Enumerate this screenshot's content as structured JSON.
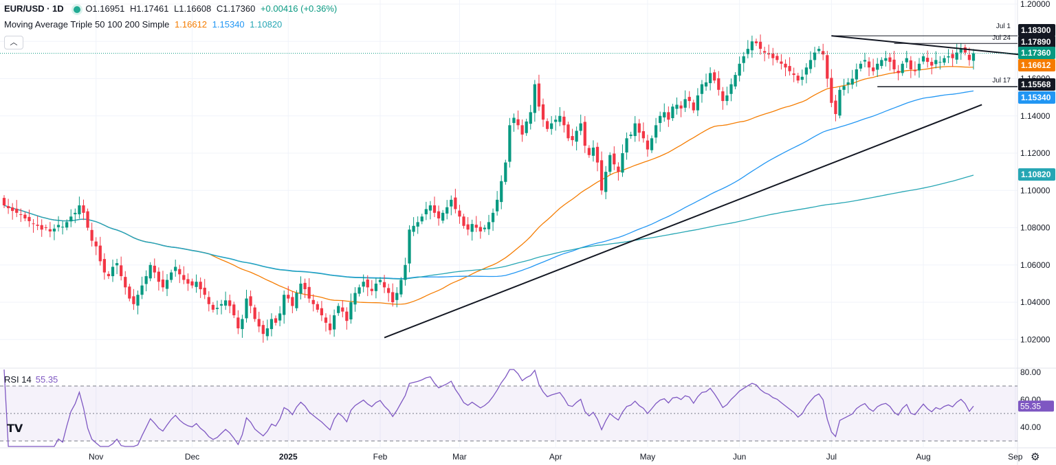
{
  "header": {
    "symbol": "EUR/USD · 1D",
    "open": "O1.16951",
    "high": "H1.17461",
    "low": "L1.16608",
    "close": "C1.17360",
    "change": "+0.00416 (+0.36%)",
    "ma_title": "Moving Average Triple 50 100 200 Simple",
    "ma50": "1.16612",
    "ma100": "1.15340",
    "ma200": "1.10820",
    "collapse_icon": "chevron-up-icon"
  },
  "rsi": {
    "title": "RSI 14",
    "value": "55.35",
    "color": "#7e57c2"
  },
  "colors": {
    "up": "#089981",
    "down": "#f23645",
    "ma50": "#f57c00",
    "ma100": "#2196f3",
    "ma200": "#26a6b4",
    "rsi": "#7e57c2"
  },
  "chart_data": {
    "type": "candlestick",
    "price_axis": {
      "ticks": [
        "1.20000",
        "1.18000",
        "1.16000",
        "1.14000",
        "1.12000",
        "1.10000",
        "1.08000",
        "1.06000",
        "1.04000",
        "1.02000"
      ],
      "range": [
        1.005,
        1.2
      ]
    },
    "x_ticks": [
      "Nov",
      "Dec",
      "2025",
      "Feb",
      "Mar",
      "Apr",
      "May",
      "Jun",
      "Jul",
      "Aug",
      "Sep"
    ],
    "price_labels": [
      {
        "value": "1.18300",
        "style": "level",
        "tag": "Jul 1"
      },
      {
        "value": "1.17890",
        "style": "level",
        "tag": "Jul 24"
      },
      {
        "value": "1.17360",
        "style": "current",
        "tag": ""
      },
      {
        "value": "1.16612",
        "style": "ma50",
        "tag": ""
      },
      {
        "value": "1.15568",
        "style": "level",
        "tag": "Jul 17"
      },
      {
        "value": "1.15340",
        "style": "ma100",
        "tag": ""
      },
      {
        "value": "1.10820",
        "style": "ma200",
        "tag": ""
      }
    ],
    "candles_close": [
      1.092,
      1.0905,
      1.089,
      1.088,
      1.087,
      1.085,
      1.0835,
      1.082,
      1.081,
      1.079,
      1.08,
      1.078,
      1.0795,
      1.0815,
      1.0805,
      1.083,
      1.086,
      1.088,
      1.092,
      1.088,
      1.08,
      1.073,
      1.07,
      1.062,
      1.056,
      1.054,
      1.059,
      1.061,
      1.054,
      1.048,
      1.042,
      1.039,
      1.044,
      1.049,
      1.054,
      1.06,
      1.056,
      1.051,
      1.048,
      1.052,
      1.056,
      1.059,
      1.055,
      1.052,
      1.05,
      1.049,
      1.051,
      1.047,
      1.044,
      1.039,
      1.036,
      1.037,
      1.039,
      1.041,
      1.038,
      1.033,
      1.026,
      1.031,
      1.042,
      1.038,
      1.031,
      1.027,
      1.023,
      1.026,
      1.031,
      1.029,
      1.034,
      1.044,
      1.042,
      1.038,
      1.045,
      1.05,
      1.047,
      1.042,
      1.039,
      1.036,
      1.033,
      1.029,
      1.025,
      1.033,
      1.038,
      1.035,
      1.03,
      1.04,
      1.045,
      1.048,
      1.051,
      1.048,
      1.046,
      1.05,
      1.052,
      1.048,
      1.045,
      1.04,
      1.045,
      1.052,
      1.06,
      1.079,
      1.081,
      1.083,
      1.086,
      1.09,
      1.092,
      1.088,
      1.085,
      1.088,
      1.091,
      1.095,
      1.09,
      1.086,
      1.081,
      1.079,
      1.082,
      1.08,
      1.078,
      1.08,
      1.083,
      1.088,
      1.095,
      1.105,
      1.115,
      1.135,
      1.139,
      1.135,
      1.13,
      1.137,
      1.142,
      1.157,
      1.145,
      1.138,
      1.133,
      1.136,
      1.138,
      1.14,
      1.135,
      1.128,
      1.127,
      1.132,
      1.136,
      1.124,
      1.119,
      1.123,
      1.115,
      1.1,
      1.11,
      1.119,
      1.114,
      1.11,
      1.12,
      1.128,
      1.13,
      1.136,
      1.131,
      1.128,
      1.122,
      1.128,
      1.135,
      1.14,
      1.142,
      1.138,
      1.145,
      1.146,
      1.144,
      1.149,
      1.148,
      1.143,
      1.151,
      1.157,
      1.158,
      1.163,
      1.159,
      1.154,
      1.148,
      1.151,
      1.157,
      1.162,
      1.168,
      1.172,
      1.176,
      1.18,
      1.179,
      1.176,
      1.174,
      1.173,
      1.171,
      1.17,
      1.168,
      1.166,
      1.164,
      1.162,
      1.159,
      1.161,
      1.166,
      1.17,
      1.174,
      1.176,
      1.173,
      1.16,
      1.147,
      1.141,
      1.154,
      1.156,
      1.158,
      1.16,
      1.165,
      1.168,
      1.17,
      1.166,
      1.164,
      1.168,
      1.17,
      1.171,
      1.169,
      1.165,
      1.163,
      1.168,
      1.171,
      1.165,
      1.164,
      1.168,
      1.172,
      1.169,
      1.167,
      1.17,
      1.169,
      1.171,
      1.172,
      1.171,
      1.174,
      1.176,
      1.174,
      1.17,
      1.1736
    ],
    "ma50_end": 1.16612,
    "ma100_end": 1.1534,
    "ma200_end": 1.1082,
    "rsi": {
      "axis_ticks": [
        "80.00",
        "60.00",
        "40.00"
      ],
      "levels": {
        "upper": 70,
        "middle": 50,
        "lower": 30
      },
      "range": [
        26,
        82
      ],
      "last": 55.35
    },
    "trendlines": [
      {
        "name": "ascending-support",
        "from": [
          "Feb 3",
          1.021
        ],
        "to": [
          "Aug 30",
          1.146
        ]
      },
      {
        "name": "descending-resistance",
        "from": [
          "Jul 1",
          1.183
        ],
        "to": [
          "Sep 5",
          1.1725
        ]
      }
    ]
  }
}
